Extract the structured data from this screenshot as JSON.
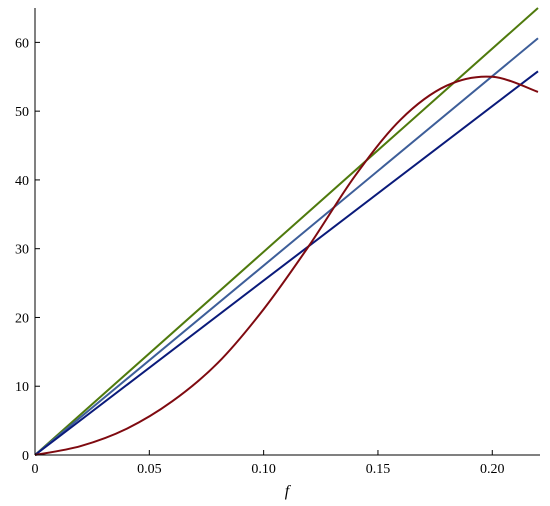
{
  "chart_data": {
    "type": "line",
    "title": "",
    "xlabel": "f",
    "ylabel": "",
    "xlim": [
      0,
      0.22
    ],
    "ylim": [
      0,
      65
    ],
    "x_ticks": [
      0,
      0.05,
      0.1,
      0.15,
      0.2
    ],
    "x_tick_labels": [
      "0",
      "0.05",
      "0.10",
      "0.15",
      "0.20"
    ],
    "y_ticks": [
      0,
      10,
      20,
      30,
      40,
      50,
      60
    ],
    "y_tick_labels": [
      "0",
      "10",
      "20",
      "30",
      "40",
      "50",
      "60"
    ],
    "grid": false,
    "legend": "none",
    "series": [
      {
        "color": "#4f7a0d",
        "x": [
          0,
          0.22
        ],
        "y": [
          0,
          65
        ]
      },
      {
        "color": "#3d5e99",
        "x": [
          0,
          0.22
        ],
        "y": [
          0,
          60.6
        ]
      },
      {
        "color": "#0a1a7a",
        "x": [
          0,
          0.22
        ],
        "y": [
          0,
          55.8
        ]
      },
      {
        "color": "#7f0a10",
        "x": [
          0,
          0.02,
          0.04,
          0.06,
          0.08,
          0.1,
          0.12,
          0.14,
          0.16,
          0.18,
          0.2,
          0.22
        ],
        "y": [
          0,
          1.3,
          3.8,
          7.8,
          13.4,
          21.2,
          30.5,
          40.6,
          48.8,
          53.7,
          55.0,
          52.8
        ]
      }
    ]
  }
}
